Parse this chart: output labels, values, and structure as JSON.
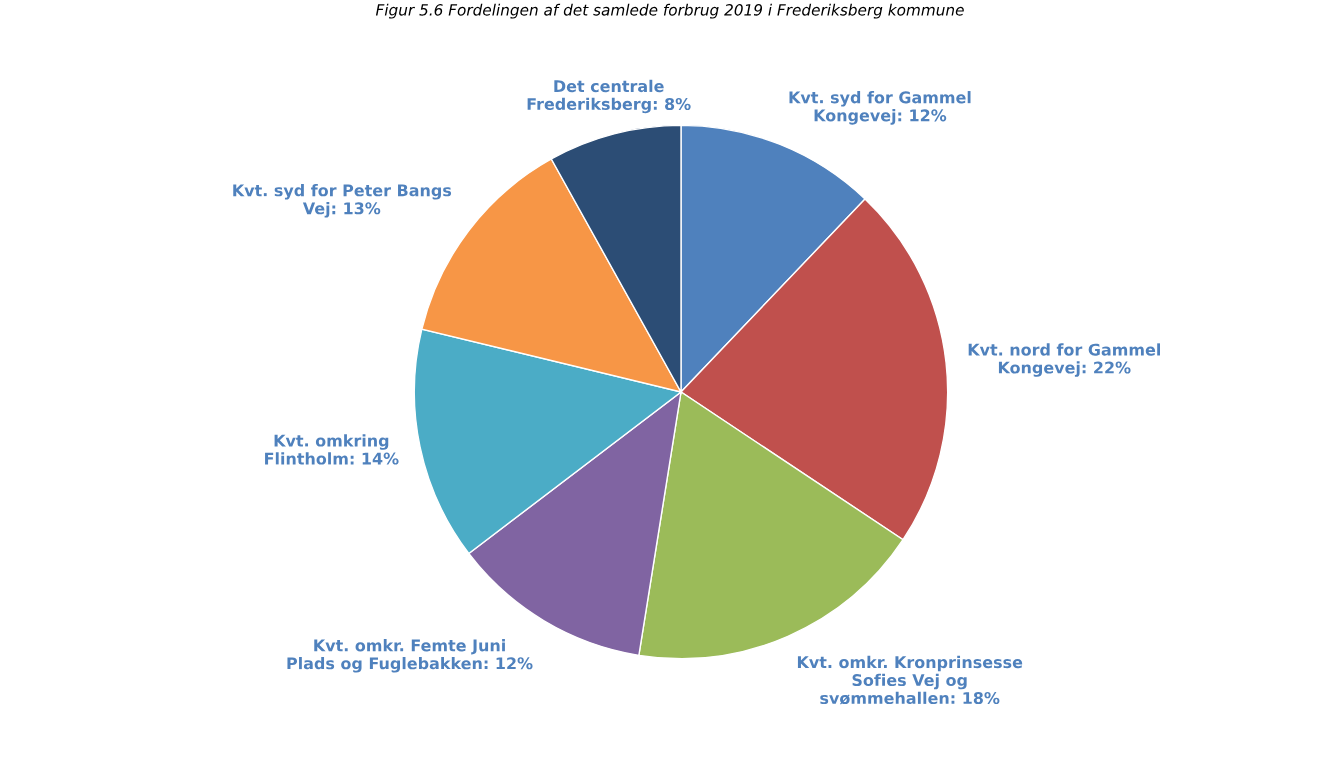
{
  "chart_data": {
    "type": "pie",
    "title": "Figur 5.6 Fordelingen af det samlede forbrug 2019 i Frederiksberg kommune",
    "categories": [
      "Kvt. syd for Gammel Kongevej",
      "Kvt. nord for Gammel Kongevej",
      "Kvt. omkr. Kronprinsesse Sofies Vej og svømmehallen",
      "Kvt. omkr. Femte Juni Plads og Fuglebakken",
      "Kvt. omkring Flintholm",
      "Kvt. syd for Peter Bangs Vej",
      "Det centrale Frederiksberg"
    ],
    "values": [
      12,
      22,
      18,
      12,
      14,
      13,
      8
    ],
    "value_labels": [
      "12%",
      "22%",
      "18%",
      "12%",
      "14%",
      "13%",
      "8%"
    ],
    "colors": [
      "#4f81bd",
      "#c0504d",
      "#9bbb59",
      "#8064a2",
      "#4bacc6",
      "#f79646",
      "#2c4d75"
    ]
  }
}
